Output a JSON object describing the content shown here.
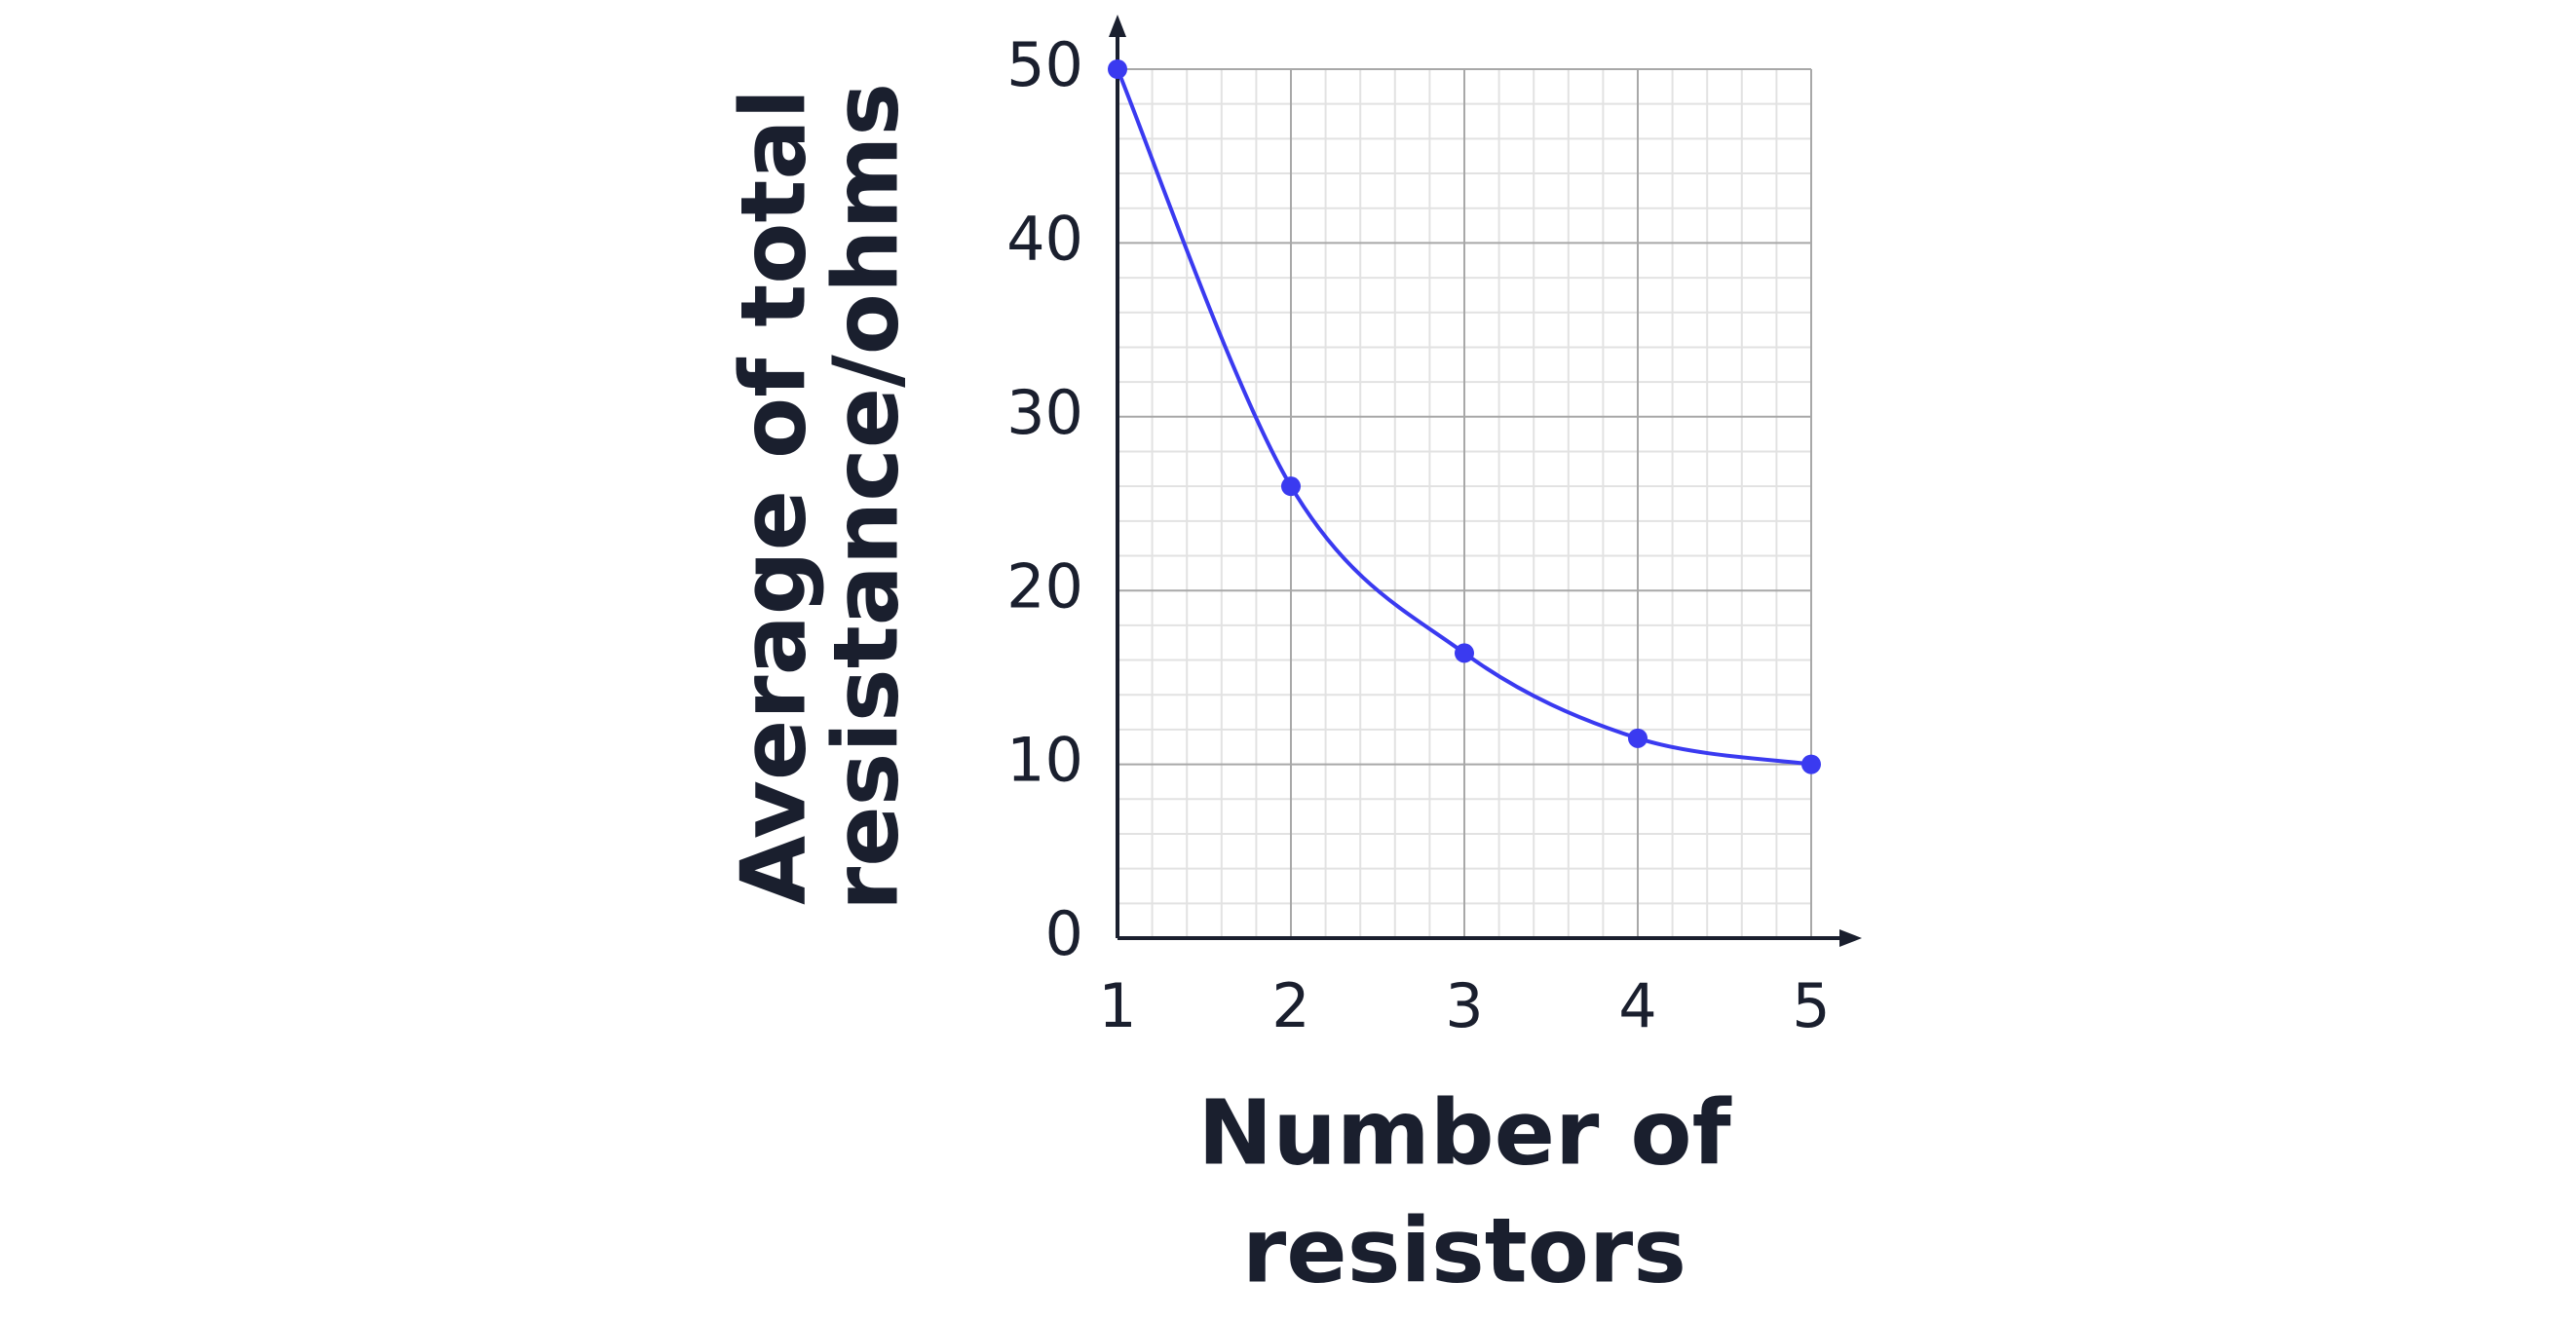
{
  "chart_data": {
    "type": "line",
    "xlabel": [
      "Number of",
      "resistors"
    ],
    "ylabel": [
      "Average of total",
      "resistance/ohms"
    ],
    "x": [
      1,
      2,
      3,
      4,
      5
    ],
    "series": [
      {
        "color": "#3a3af0",
        "values": [
          50,
          26,
          16.4,
          11.5,
          10
        ]
      }
    ],
    "xlim": [
      1,
      5
    ],
    "ylim": [
      0,
      50
    ],
    "xticks": [
      1,
      2,
      3,
      4,
      5
    ],
    "yticks": [
      0,
      10,
      20,
      30,
      40,
      50
    ],
    "grid": true,
    "minor_grid": true,
    "smooth": true
  }
}
